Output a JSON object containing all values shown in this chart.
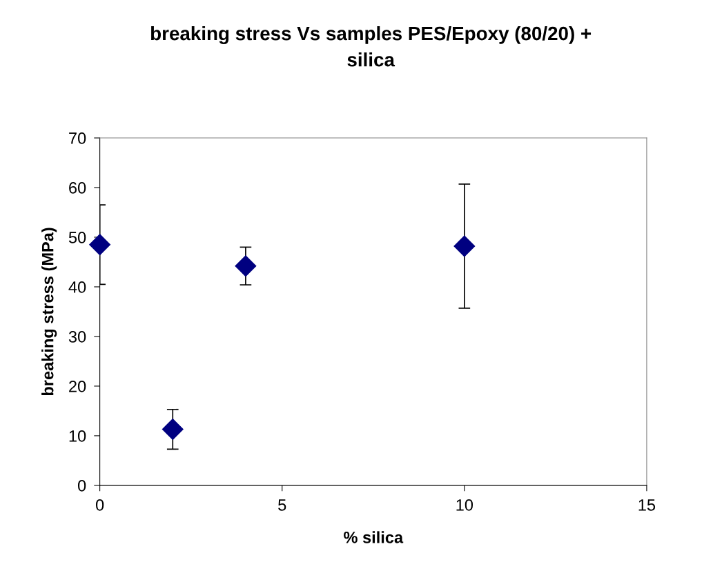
{
  "chart_data": {
    "type": "scatter",
    "title": "breaking stress Vs samples PES/Epoxy (80/20) +\nsilica",
    "xlabel": "% silica",
    "ylabel": "breaking stress (MPa)",
    "x": [
      0,
      2,
      4,
      10
    ],
    "series": [
      {
        "color": "#000080",
        "values": [
          48.5,
          11.3,
          44.2,
          48.2
        ],
        "errors": [
          8,
          4,
          3.8,
          12.5
        ]
      }
    ],
    "xlim": [
      0,
      15
    ],
    "xticks": [
      0,
      5,
      10,
      15
    ],
    "ylim": [
      0,
      70
    ],
    "yticks": [
      0,
      10,
      20,
      30,
      40,
      50,
      60,
      70
    ],
    "marker": "diamond",
    "grid": false,
    "legend": false
  }
}
